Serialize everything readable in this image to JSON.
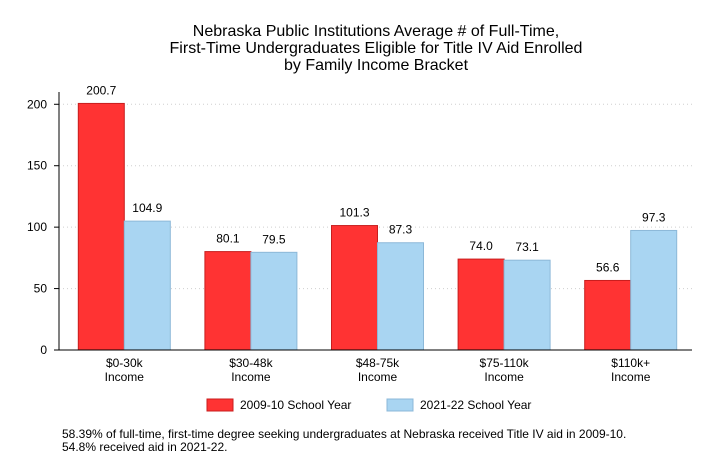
{
  "chart_data": {
    "type": "bar",
    "title_lines": [
      "Nebraska Public Institutions Average # of Full-Time,",
      "First-Time Undergraduates Eligible for Title IV Aid Enrolled",
      "by Family Income Bracket"
    ],
    "categories": [
      [
        "$0-30k",
        "Income"
      ],
      [
        "$30-48k",
        "Income"
      ],
      [
        "$48-75k",
        "Income"
      ],
      [
        "$75-110k",
        "Income"
      ],
      [
        "$110k+",
        "Income"
      ]
    ],
    "series": [
      {
        "name": "2009-10 School Year",
        "color": "#ff3333",
        "stroke": "#c81e1e",
        "values": [
          200.7,
          80.1,
          101.3,
          74.0,
          56.6
        ],
        "labels": [
          "200.7",
          "80.1",
          "101.3",
          "74.0",
          "56.6"
        ]
      },
      {
        "name": "2021-22 School Year",
        "color": "#a9d5f2",
        "stroke": "#8cb8d8",
        "values": [
          104.9,
          79.5,
          87.3,
          73.1,
          97.3
        ],
        "labels": [
          "104.9",
          "79.5",
          "87.3",
          "73.1",
          "97.3"
        ]
      }
    ],
    "yticks": [
      0,
      50,
      100,
      150,
      200
    ],
    "ylim": [
      0,
      210
    ],
    "xlabel": "",
    "ylabel": "",
    "grid": "horizontal dotted",
    "legend_position": "bottom"
  },
  "footnote": "58.39% of full-time, first-time degree seeking undergraduates at Nebraska received Title IV aid in 2009-10. 54.8% received aid in 2021-22."
}
